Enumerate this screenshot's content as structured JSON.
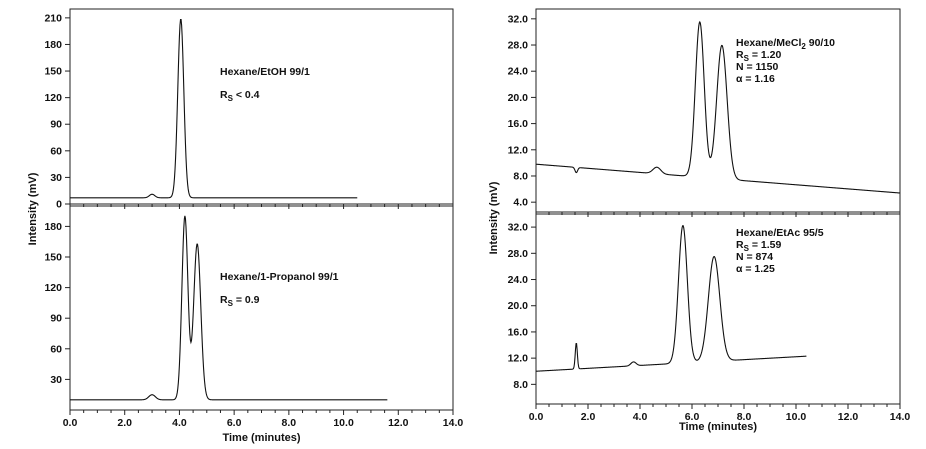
{
  "figure": {
    "left_ylabel": "Intensity (mV)",
    "right_ylabel": "Intensity (mV)",
    "left_xlabel": "Time (minutes)",
    "right_xlabel": "Time (minutes)"
  },
  "chart_data": [
    {
      "type": "line",
      "id": "hexane-etoh",
      "annotation": [
        "Hexane/EtOH  99/1",
        "R_S < 0.4"
      ],
      "xlim": [
        0,
        14
      ],
      "ylim": [
        0,
        220
      ],
      "yticks": [
        0,
        30,
        60,
        90,
        120,
        150,
        180,
        210
      ],
      "ytick_labels": [
        "0",
        "30",
        "60",
        "90",
        "120",
        "150",
        "180",
        "210"
      ],
      "xticks": [
        0,
        2,
        4,
        6,
        8,
        10,
        12,
        14
      ],
      "xtick_labels": [],
      "xlabel": "",
      "series": [
        {
          "baseline": 7,
          "x_end": 10.5,
          "peaks": [
            {
              "t": 3.0,
              "h": 4,
              "w": 0.1
            },
            {
              "t": 4.05,
              "h": 202,
              "w": 0.11
            }
          ]
        }
      ]
    },
    {
      "type": "line",
      "id": "hexane-propanol",
      "annotation": [
        "Hexane/1-Propanol  99/1",
        "R_S = 0.9"
      ],
      "xlim": [
        0,
        14
      ],
      "ylim": [
        0,
        200
      ],
      "yticks": [
        30,
        60,
        90,
        120,
        150,
        180
      ],
      "ytick_labels": [
        "30",
        "60",
        "90",
        "120",
        "150",
        "180"
      ],
      "xticks": [
        0,
        2,
        4,
        6,
        8,
        10,
        12,
        14
      ],
      "xtick_labels": [
        "0.0",
        "2.0",
        "4.0",
        "6.0",
        "8.0",
        "10.0",
        "12.0",
        "14.0"
      ],
      "xlabel": "Time (minutes)",
      "series": [
        {
          "baseline": 10,
          "x_end": 11.6,
          "peaks": [
            {
              "t": 3.0,
              "h": 5,
              "w": 0.12
            },
            {
              "t": 4.2,
              "h": 180,
              "w": 0.11
            },
            {
              "t": 4.65,
              "h": 153,
              "w": 0.13
            }
          ]
        }
      ]
    },
    {
      "type": "line",
      "id": "hexane-mecl2",
      "annotation": [
        "Hexane/MeCl2  90/10",
        "R_S = 1.20",
        "N = 1150",
        "α = 1.16"
      ],
      "xlim": [
        0,
        14
      ],
      "ylim": [
        2.5,
        33.5
      ],
      "yticks": [
        4,
        8,
        12,
        16,
        20,
        24,
        28,
        32
      ],
      "ytick_labels": [
        "4.0",
        "8.0",
        "12.0",
        "16.0",
        "20.0",
        "24.0",
        "28.0",
        "32.0"
      ],
      "xticks": [
        0,
        2,
        4,
        6,
        8,
        10,
        12,
        14
      ],
      "xtick_labels": [],
      "xlabel": "",
      "series": [
        {
          "baseline_start": 9.8,
          "baseline_end": 5.4,
          "x_end": 14.0,
          "peaks": [
            {
              "t": 1.55,
              "h": -0.8,
              "w": 0.05
            },
            {
              "t": 4.65,
              "h": 1.0,
              "w": 0.15
            },
            {
              "t": 6.3,
              "h": 23.7,
              "w": 0.17
            },
            {
              "t": 7.15,
              "h": 20.4,
              "w": 0.2
            }
          ]
        }
      ]
    },
    {
      "type": "line",
      "id": "hexane-etac",
      "annotation": [
        "Hexane/EtAc  95/5",
        "R_S = 1.59",
        "N = 874",
        "α = 1.25"
      ],
      "xlim": [
        0,
        14
      ],
      "ylim": [
        5,
        34
      ],
      "yticks": [
        8,
        12,
        16,
        20,
        24,
        28,
        32
      ],
      "ytick_labels": [
        "8.0",
        "12.0",
        "16.0",
        "20.0",
        "24.0",
        "28.0",
        "32.0"
      ],
      "xticks": [
        0,
        2,
        4,
        6,
        8,
        10,
        12,
        14
      ],
      "xtick_labels": [
        "0.0",
        "2.0",
        "4.0",
        "6.0",
        "8.0",
        "10.0",
        "12.0",
        "14.0"
      ],
      "xlabel": "Time (minutes)",
      "series": [
        {
          "baseline_start": 10.0,
          "baseline_end": 12.3,
          "x_end": 10.4,
          "peaks": [
            {
              "t": 1.55,
              "h": 4.0,
              "w": 0.04
            },
            {
              "t": 3.75,
              "h": 0.6,
              "w": 0.1
            },
            {
              "t": 5.65,
              "h": 21.0,
              "w": 0.17
            },
            {
              "t": 6.85,
              "h": 16.0,
              "w": 0.22
            }
          ]
        }
      ]
    }
  ]
}
